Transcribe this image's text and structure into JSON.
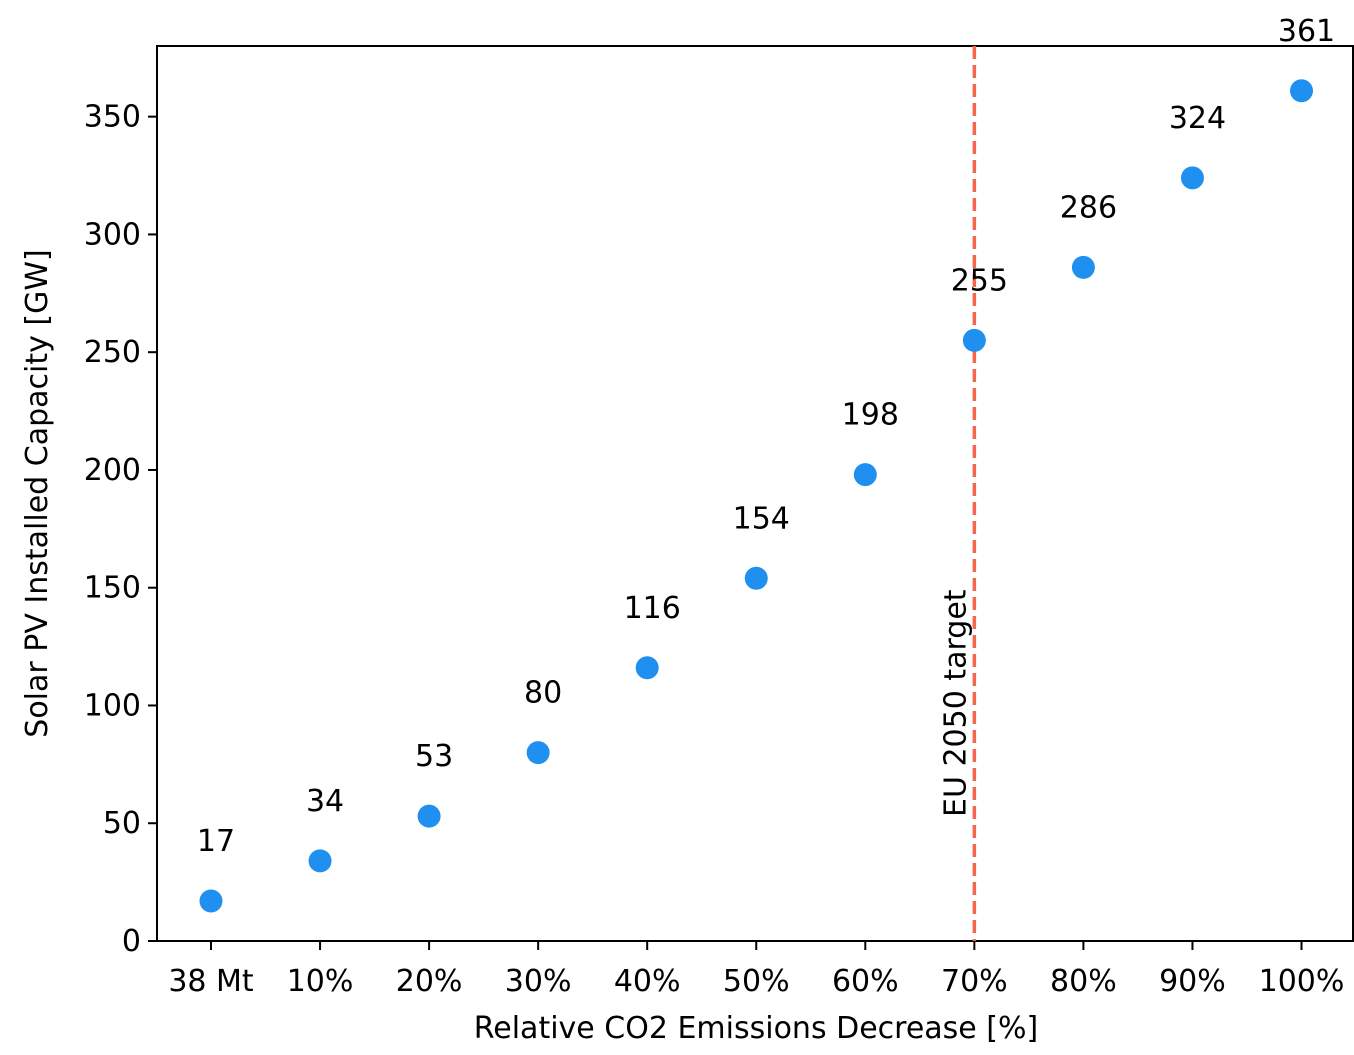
{
  "chart_data": {
    "type": "scatter",
    "title": "",
    "xlabel": "Relative CO2 Emissions Decrease [%]",
    "ylabel": "Solar PV Installed Capacity [GW]",
    "categories": [
      "38 Mt",
      "10%",
      "20%",
      "30%",
      "40%",
      "50%",
      "60%",
      "70%",
      "80%",
      "90%",
      "100%"
    ],
    "series": [
      {
        "values": [
          17,
          34,
          53,
          80,
          116,
          154,
          198,
          255,
          286,
          324,
          361
        ],
        "color": "#1f8ff0"
      }
    ],
    "data_labels": [
      "17",
      "34",
      "53",
      "80",
      "116",
      "154",
      "198",
      "255",
      "286",
      "324",
      "361"
    ],
    "ylim": [
      0,
      380
    ],
    "yticks": [
      0,
      50,
      100,
      150,
      200,
      250,
      300,
      350
    ],
    "ytick_labels": [
      "0",
      "50",
      "100",
      "150",
      "200",
      "250",
      "300",
      "350"
    ],
    "grid": false,
    "reference_line": {
      "orientation": "vertical",
      "at_category": "70%",
      "style": "dashed",
      "color": "#f4674a",
      "label": "EU 2050 target"
    }
  }
}
